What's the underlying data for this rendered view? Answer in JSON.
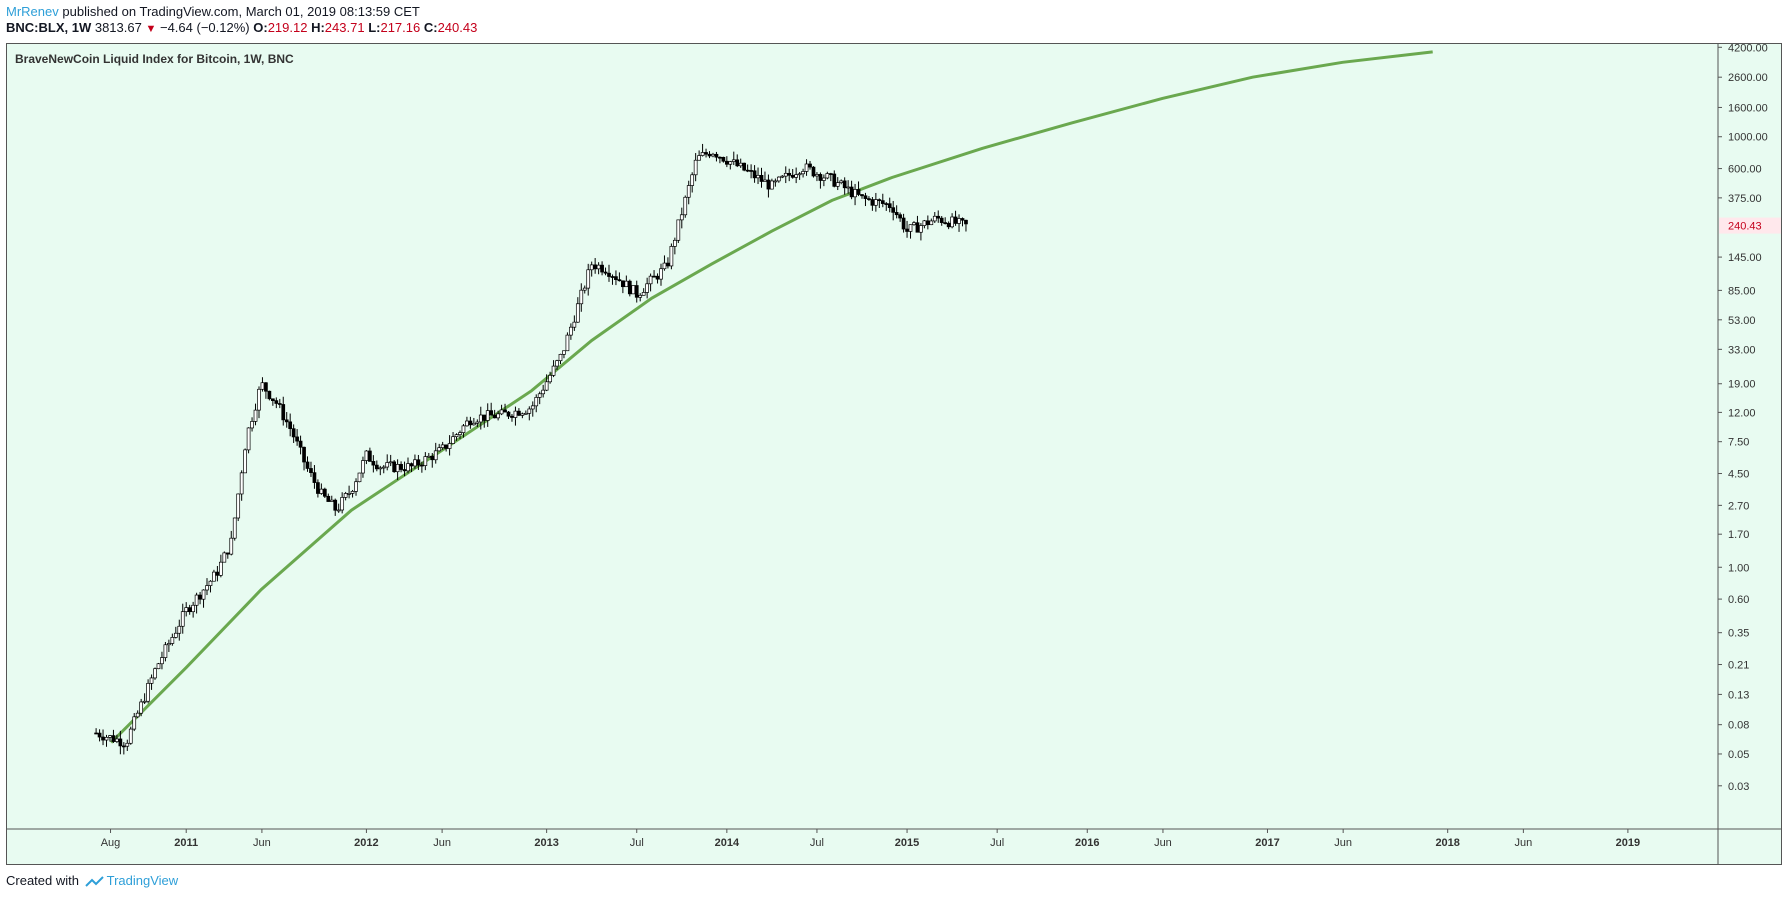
{
  "header": {
    "author": "MrRenev",
    "published": "published on TradingView.com, March 01, 2019 08:13:59 CET",
    "symbol": "BNC:BLX, 1W",
    "price": "3813.67",
    "change": "−4.64 (−0.12%)",
    "o_label": "O:",
    "o_value": "219.12",
    "h_label": "H:",
    "h_value": "243.71",
    "l_label": "L:",
    "l_value": "217.16",
    "c_label": "C:",
    "c_value": "240.43"
  },
  "footer": {
    "created_with": "Created with",
    "brand": "TradingView"
  },
  "colors": {
    "background": "#e8fbf1",
    "curve": "#6aa84f",
    "candle": "#000000",
    "last_price_badge": "#c4001b"
  },
  "chart_data": {
    "type": "candlestick",
    "title": "BraveNewCoin Liquid Index for Bitcoin, 1W, BNC",
    "y_scale": "log",
    "ylim": [
      0.015,
      4500
    ],
    "y_ticks": [
      "4200.00",
      "2600.00",
      "1600.00",
      "1000.00",
      "600.00",
      "375.00",
      "240.43",
      "145.00",
      "85.00",
      "53.00",
      "33.00",
      "19.00",
      "12.00",
      "7.50",
      "4.50",
      "2.70",
      "1.70",
      "1.00",
      "0.60",
      "0.35",
      "0.21",
      "0.13",
      "0.08",
      "0.05",
      "0.03"
    ],
    "x_ticks": [
      "Aug",
      "2011",
      "Jun",
      "2012",
      "Jun",
      "2013",
      "Jul",
      "2014",
      "Jul",
      "2015",
      "Jul",
      "2016",
      "Jun",
      "2017",
      "Jun",
      "2018",
      "Jun",
      "2019"
    ],
    "last_price": "240.43",
    "series": [
      {
        "kind": "price",
        "points": [
          [
            "2010-07",
            0.07
          ],
          [
            "2010-09",
            0.06
          ],
          [
            "2010-11",
            0.2
          ],
          [
            "2011-01",
            0.5
          ],
          [
            "2011-03",
            0.9
          ],
          [
            "2011-04",
            1.5
          ],
          [
            "2011-05",
            8
          ],
          [
            "2011-06",
            19
          ],
          [
            "2011-07",
            14
          ],
          [
            "2011-08",
            9
          ],
          [
            "2011-09",
            5
          ],
          [
            "2011-10",
            3.2
          ],
          [
            "2011-11",
            2.5
          ],
          [
            "2011-12",
            3.5
          ],
          [
            "2012-01",
            6
          ],
          [
            "2012-02",
            5
          ],
          [
            "2012-04",
            5
          ],
          [
            "2012-06",
            6.5
          ],
          [
            "2012-08",
            11
          ],
          [
            "2012-10",
            11.5
          ],
          [
            "2012-12",
            13
          ],
          [
            "2013-02",
            30
          ],
          [
            "2013-04",
            130
          ],
          [
            "2013-05",
            120
          ],
          [
            "2013-07",
            80
          ],
          [
            "2013-09",
            125
          ],
          [
            "2013-11",
            700
          ],
          [
            "2013-12",
            800
          ],
          [
            "2014-02",
            600
          ],
          [
            "2014-04",
            450
          ],
          [
            "2014-06",
            620
          ],
          [
            "2014-08",
            500
          ],
          [
            "2014-10",
            370
          ],
          [
            "2014-12",
            330
          ],
          [
            "2015-01",
            220
          ],
          [
            "2015-03",
            270
          ],
          [
            "2015-05",
            238
          ]
        ]
      },
      {
        "kind": "trend-curve",
        "points": [
          [
            "2010-08",
            0.06
          ],
          [
            "2011-01",
            0.2
          ],
          [
            "2011-06",
            0.7
          ],
          [
            "2011-12",
            2.5
          ],
          [
            "2012-06",
            6.5
          ],
          [
            "2012-12",
            17
          ],
          [
            "2013-04",
            38
          ],
          [
            "2013-08",
            75
          ],
          [
            "2013-12",
            130
          ],
          [
            "2014-04",
            220
          ],
          [
            "2014-08",
            360
          ],
          [
            "2014-12",
            520
          ],
          [
            "2015-06",
            830
          ],
          [
            "2015-12",
            1250
          ],
          [
            "2016-06",
            1850
          ],
          [
            "2016-12",
            2600
          ],
          [
            "2017-06",
            3300
          ],
          [
            "2017-12",
            3900
          ]
        ]
      }
    ]
  }
}
